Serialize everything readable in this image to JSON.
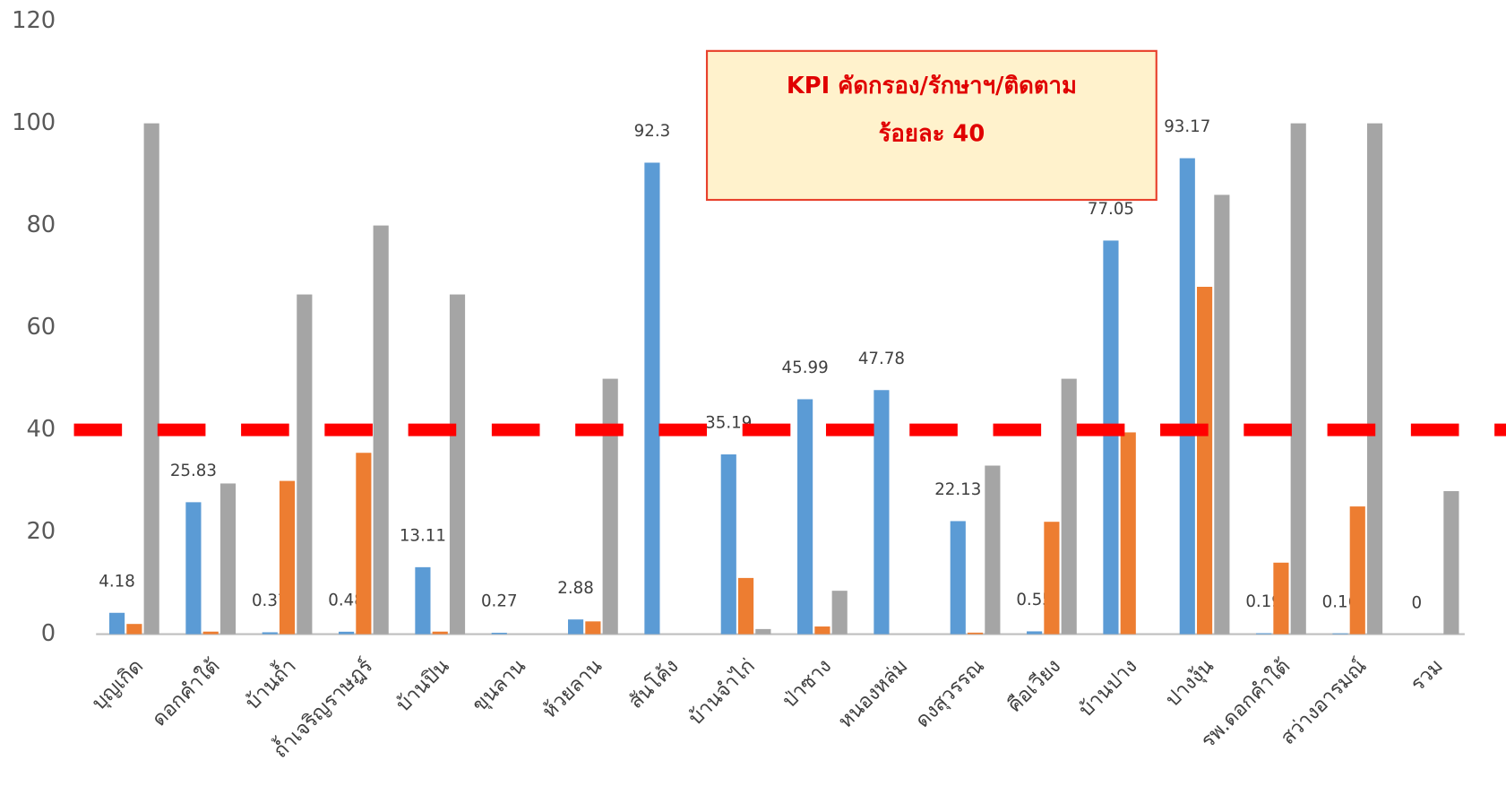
{
  "chart_data": {
    "type": "bar",
    "categories": [
      "บุญเกิด",
      "ดอกคำใต้",
      "บ้านถ้ำ",
      "ถ้ำเจริญราษฎร์",
      "บ้านปิน",
      "ขุนลาน",
      "ห้วยลาน",
      "สันโค้ง",
      "บ้านจำไก่",
      "ป่าซาง",
      "หนองหล่ม",
      "ดงสุวรรณ",
      "คือเวียง",
      "บ้านปาง",
      "ปางงุ้น",
      "รพ.ดอกคำใต้",
      "สว่างอารมณ์",
      "รวม"
    ],
    "series": [
      {
        "color": "#5b9bd5",
        "show_labels": true,
        "values": [
          4.18,
          25.83,
          0.37,
          0.48,
          13.11,
          0.27,
          2.88,
          92.3,
          35.19,
          45.99,
          47.78,
          22.13,
          0.55,
          77.05,
          93.17,
          0.19,
          0.16,
          0
        ]
      },
      {
        "color": "#ed7d31",
        "show_labels": false,
        "values": [
          2,
          0.5,
          30,
          35.5,
          0.5,
          0,
          2.5,
          0,
          11,
          1.5,
          0,
          0.3,
          22,
          39.5,
          68,
          14,
          25,
          0
        ]
      },
      {
        "color": "#a5a5a5",
        "show_labels": false,
        "values": [
          100,
          29.5,
          66.5,
          80,
          66.5,
          0,
          50,
          0,
          1,
          8.5,
          0,
          33,
          50,
          0,
          86,
          100,
          100,
          28
        ]
      }
    ],
    "ylim": [
      0,
      120
    ],
    "yticks": [
      0,
      20,
      40,
      60,
      80,
      100,
      120
    ],
    "grid": false,
    "reference_line": {
      "value": 40,
      "color": "#ff0000"
    },
    "annotation": [
      "KPI คัดกรอง/รักษาฯ/ติดตาม",
      "ร้อยละ 40"
    ]
  }
}
